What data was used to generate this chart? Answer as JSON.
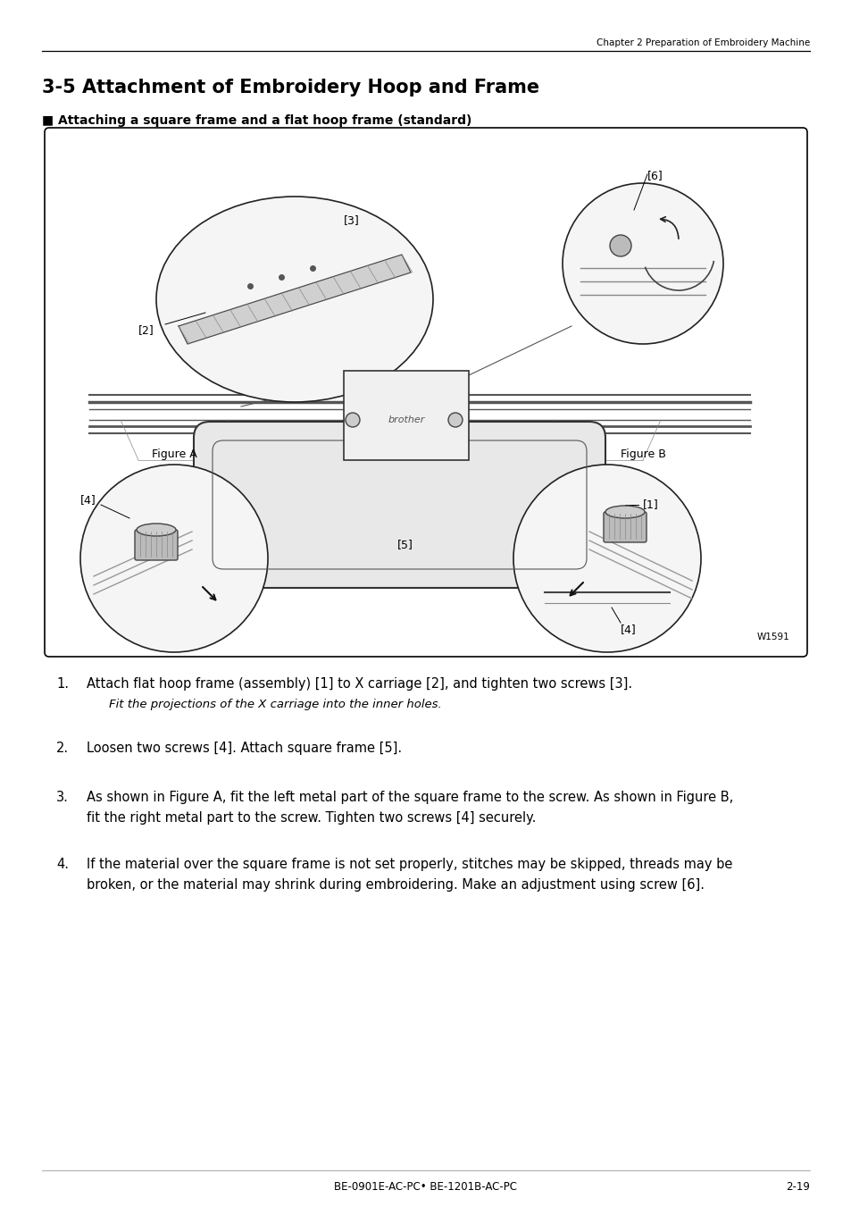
{
  "page_header_right": "Chapter 2 Preparation of Embroidery Machine",
  "section_title": "3-5 Attachment of Embroidery Hoop and Frame",
  "subsection_title": "■ Attaching a square frame and a flat hoop frame (standard)",
  "figure_label": "W1591",
  "figure_a_label": "Figure A",
  "figure_b_label": "Figure B",
  "instructions": [
    {
      "num": "1.",
      "main": "Attach flat hoop frame (assembly) [1] to X carriage [2], and tighten two screws [3].",
      "sub": "Fit the projections of the X carriage into the inner holes."
    },
    {
      "num": "2.",
      "main": "Loosen two screws [4]. Attach square frame [5].",
      "sub": ""
    },
    {
      "num": "3.",
      "main": "As shown in Figure A, fit the left metal part of the square frame to the screw. As shown in Figure B,",
      "main2": "fit the right metal part to the screw. Tighten two screws [4] securely.",
      "sub": ""
    },
    {
      "num": "4.",
      "main": "If the material over the square frame is not set properly, stitches may be skipped, threads may be",
      "main2": "broken, or the material may shrink during embroidering. Make an adjustment using screw [6].",
      "sub": ""
    }
  ],
  "footer_center": "BE-0901E-AC-PC• BE-1201B-AC-PC",
  "footer_right": "2-19",
  "bg_color": "#ffffff",
  "text_color": "#000000",
  "box_border": "#000000",
  "box_bg": "#ffffff"
}
